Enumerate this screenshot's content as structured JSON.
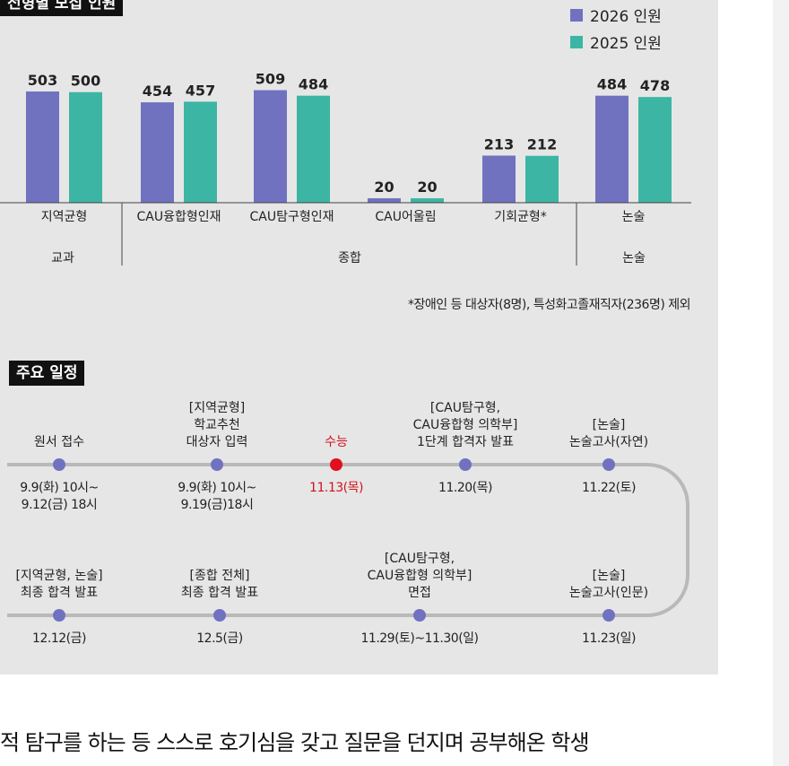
{
  "chart_title": "전형별 모집 인원",
  "chart_data": {
    "type": "bar",
    "categories": [
      "지역균형",
      "CAU융합형인재",
      "CAU탐구형인재",
      "CAU어울림",
      "기회균형*",
      "논술"
    ],
    "groups": [
      {
        "label": "교과",
        "categories": [
          "지역균형"
        ]
      },
      {
        "label": "종합",
        "categories": [
          "CAU융합형인재",
          "CAU탐구형인재",
          "CAU어울림",
          "기회균형*"
        ]
      },
      {
        "label": "논술",
        "categories": [
          "논술"
        ]
      }
    ],
    "series": [
      {
        "name": "2026 인원",
        "color": "#7072c0",
        "values": [
          503,
          454,
          509,
          20,
          213,
          484
        ]
      },
      {
        "name": "2025 인원",
        "color": "#3db5a4",
        "values": [
          500,
          457,
          484,
          20,
          212,
          478
        ]
      }
    ],
    "ylim": [
      0,
      560
    ],
    "grid": false,
    "legend": "top-right"
  },
  "footnote": "*장애인 등 대상자(8명), 특성화고졸재직자(236명) 제외",
  "schedule": {
    "title": "주요 일정",
    "events": [
      {
        "label": [
          "원서 접수"
        ],
        "date": [
          "9.9(화) 10시~",
          "9.12(금) 18시"
        ],
        "highlight": false
      },
      {
        "label": [
          "[지역균형]",
          "학교추천",
          "대상자 입력"
        ],
        "date": [
          "9.9(화) 10시~",
          "9.19(금)18시"
        ],
        "highlight": false
      },
      {
        "label": [
          "수능"
        ],
        "date": [
          "11.13(목)"
        ],
        "highlight": true
      },
      {
        "label": [
          "[CAU탐구형,",
          "CAU융합형 의학부]",
          "1단계 합격자 발표"
        ],
        "date": [
          "11.20(목)"
        ],
        "highlight": false
      },
      {
        "label": [
          "[논술]",
          "논술고사(자연)"
        ],
        "date": [
          "11.22(토)"
        ],
        "highlight": false
      },
      {
        "label": [
          "[논술]",
          "논술고사(인문)"
        ],
        "date": [
          "11.23(일)"
        ],
        "highlight": false
      },
      {
        "label": [
          "[CAU탐구형,",
          "CAU융합형 의학부]",
          "면접"
        ],
        "date": [
          "11.29(토)~11.30(일)"
        ],
        "highlight": false
      },
      {
        "label": [
          "[종합 전체]",
          "최종 합격 발표"
        ],
        "date": [
          "12.5(금)"
        ],
        "highlight": false
      },
      {
        "label": [
          "[지역균형, 논술]",
          "최종 합격 발표"
        ],
        "date": [
          "12.12(금)"
        ],
        "highlight": false
      }
    ]
  },
  "article_text": "적 탐구를 하는 등 스스로 호기심을 갖고 질문을 던지며 공부해온 학생"
}
